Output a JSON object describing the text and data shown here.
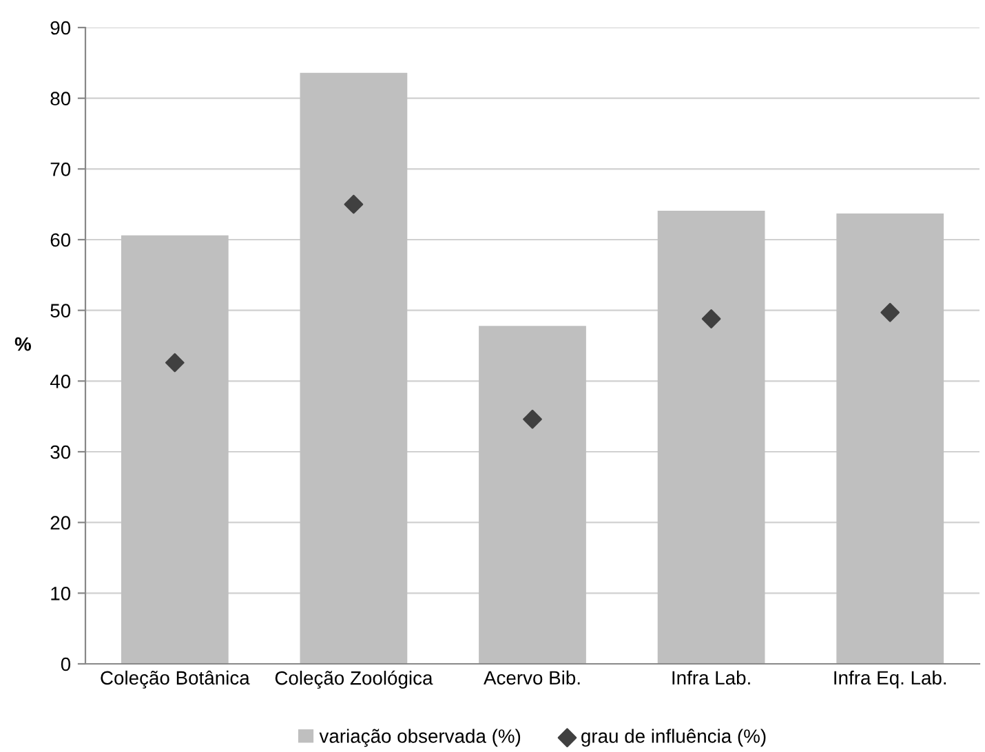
{
  "chart_data": {
    "type": "bar",
    "ylabel": "%",
    "categories": [
      "Coleção Botânica",
      "Coleção Zoológica",
      "Acervo Bib.",
      "Infra Lab.",
      "Infra Eq. Lab."
    ],
    "series": [
      {
        "name": "variação observada (%)",
        "color": "#bfbfbf",
        "values": [
          60.6,
          83.6,
          47.8,
          64.1,
          63.7
        ]
      },
      {
        "name": "grau de influência (%)",
        "type": "scatter",
        "color": "#404040",
        "marker": "diamond",
        "values": [
          42.6,
          65.0,
          34.6,
          48.8,
          49.7
        ]
      }
    ],
    "ylim": [
      0,
      90
    ],
    "yticks": [
      0,
      10,
      20,
      30,
      40,
      50,
      60,
      70,
      80,
      90
    ],
    "grid": "y",
    "legend": "bottom"
  }
}
